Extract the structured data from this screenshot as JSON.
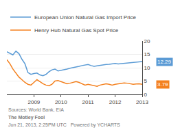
{
  "chart_data": {
    "type": "line",
    "categories": [
      null,
      null,
      null,
      null,
      null,
      null,
      null,
      null,
      null,
      "2009",
      null,
      null,
      null,
      null,
      null,
      null,
      null,
      null,
      "2010",
      null,
      null,
      null,
      null,
      null,
      null,
      null,
      null,
      "2011",
      null,
      null,
      null,
      null,
      null,
      null,
      null,
      null,
      "2012",
      null,
      null,
      null,
      null,
      null,
      null,
      null,
      null,
      "2013"
    ],
    "series": [
      {
        "name": "European Union Natural Gas Import Price",
        "color": "#5b9bd5",
        "values": [
          16.0,
          15.5,
          14.8,
          16.2,
          15.3,
          13.2,
          11.5,
          8.2,
          7.5,
          7.8,
          8.0,
          7.3,
          7.0,
          7.5,
          8.5,
          9.2,
          9.5,
          8.8,
          9.0,
          9.3,
          9.5,
          9.8,
          10.0,
          10.2,
          10.5,
          10.8,
          11.0,
          11.2,
          10.8,
          10.5,
          10.7,
          10.9,
          11.0,
          11.2,
          11.3,
          11.5,
          11.6,
          11.4,
          11.5,
          11.6,
          11.7,
          11.9,
          12.0,
          12.1,
          12.2,
          12.29
        ]
      },
      {
        "name": "Henry Hub Natural Gas Spot Price",
        "color": "#f4811f",
        "values": [
          13.0,
          11.5,
          9.5,
          8.0,
          6.5,
          5.5,
          4.5,
          3.8,
          3.5,
          4.5,
          5.5,
          4.8,
          4.0,
          3.5,
          3.2,
          3.8,
          5.0,
          5.2,
          4.8,
          4.5,
          4.0,
          4.2,
          4.5,
          4.8,
          4.5,
          4.0,
          3.5,
          3.8,
          3.5,
          3.2,
          3.0,
          3.5,
          3.8,
          4.0,
          3.8,
          3.5,
          3.8,
          4.0,
          4.2,
          4.3,
          4.2,
          4.0,
          3.8,
          3.9,
          4.0,
          3.79
        ]
      }
    ],
    "ylim": [
      0,
      20
    ],
    "yticks": [
      0,
      5,
      10,
      15,
      20
    ],
    "grid": true,
    "legend": "top left",
    "annotations": [
      {
        "text": "12.29",
        "x": "2013",
        "y": 12.29,
        "color": "#5b9bd5"
      },
      {
        "text": "3.79",
        "x": "2013",
        "y": 3.79,
        "color": "#f4811f"
      }
    ],
    "caption": "Sources: World Bank, EIA",
    "footer": [
      "The Motley Fool",
      "Jun 21, 2013, 2:25PM UTC   Powered by YCHARTS"
    ]
  }
}
